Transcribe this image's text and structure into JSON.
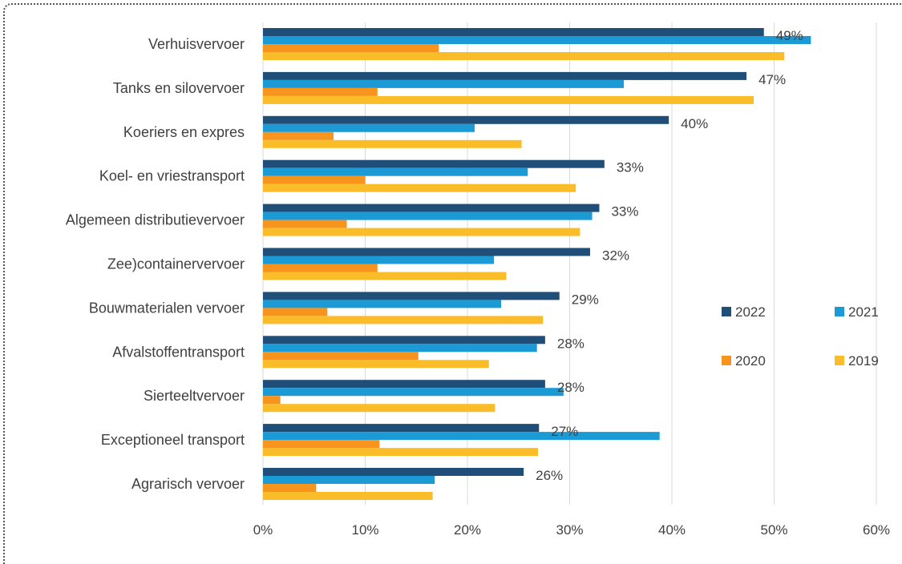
{
  "chart_data": {
    "type": "bar",
    "orientation": "horizontal",
    "categories": [
      "Verhuisvervoer",
      "Tanks en silovervoer",
      "Koeriers en expres ",
      "Koel- en vriestransport ",
      "Algemeen distributievervoer ",
      "Zee)containervervoer",
      "Bouwmaterialen vervoer ",
      "Afvalstoffentransport",
      "Sierteeltvervoer ",
      "Exceptioneel transport ",
      "Agrarisch vervoer"
    ],
    "series": [
      {
        "name": "2022",
        "color": "#1f4e79",
        "values": [
          0.49,
          0.473,
          0.397,
          0.334,
          0.329,
          0.32,
          0.29,
          0.276,
          0.276,
          0.27,
          0.255
        ]
      },
      {
        "name": "2021",
        "color": "#1b9ad6",
        "values": [
          0.536,
          0.353,
          0.207,
          0.259,
          0.322,
          0.226,
          0.233,
          0.268,
          0.294,
          0.388,
          0.168
        ]
      },
      {
        "name": "2020",
        "color": "#f7941d",
        "values": [
          0.172,
          0.112,
          0.069,
          0.1,
          0.082,
          0.112,
          0.063,
          0.152,
          0.017,
          0.114,
          0.052
        ]
      },
      {
        "name": "2019",
        "color": "#fbbc2a",
        "values": [
          0.51,
          0.48,
          0.253,
          0.306,
          0.31,
          0.238,
          0.274,
          0.221,
          0.227,
          0.269,
          0.166
        ]
      }
    ],
    "data_labels": [
      "49%",
      "47%",
      "40%",
      "33%",
      "33%",
      "32%",
      "29%",
      "28%",
      "28%",
      "27%",
      "26%"
    ],
    "xlim": [
      0,
      0.6
    ],
    "xticks": [
      "0%",
      "10%",
      "20%",
      "30%",
      "40%",
      "50%",
      "60%"
    ],
    "title": "",
    "xlabel": "",
    "ylabel": "",
    "grid": "vertical",
    "legend_position": "right"
  }
}
